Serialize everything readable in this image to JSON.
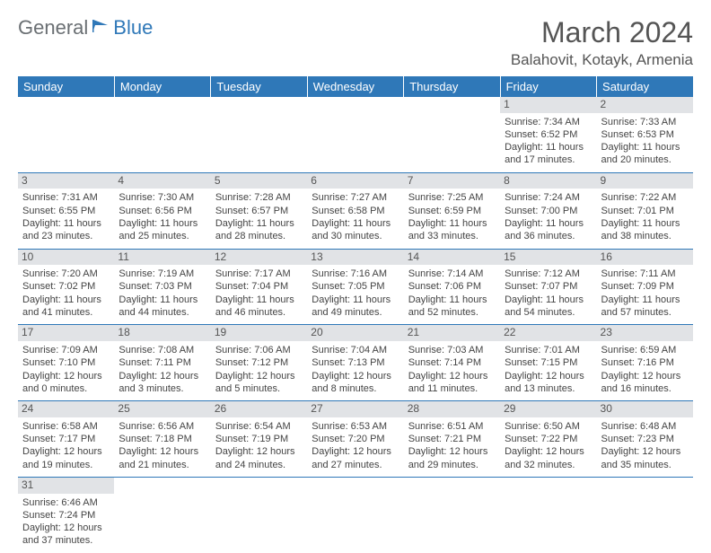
{
  "logo": {
    "text1": "General",
    "text2": "Blue"
  },
  "title": "March 2024",
  "subtitle": "Balahovit, Kotayk, Armenia",
  "colors": {
    "header_bg": "#2f78b8",
    "header_text": "#ffffff",
    "daynum_bg": "#e1e3e6",
    "text": "#444444",
    "border": "#2f78b8"
  },
  "columns": [
    "Sunday",
    "Monday",
    "Tuesday",
    "Wednesday",
    "Thursday",
    "Friday",
    "Saturday"
  ],
  "weeks": [
    [
      null,
      null,
      null,
      null,
      null,
      {
        "n": "1",
        "sr": "Sunrise: 7:34 AM",
        "ss": "Sunset: 6:52 PM",
        "dl": "Daylight: 11 hours and 17 minutes."
      },
      {
        "n": "2",
        "sr": "Sunrise: 7:33 AM",
        "ss": "Sunset: 6:53 PM",
        "dl": "Daylight: 11 hours and 20 minutes."
      }
    ],
    [
      {
        "n": "3",
        "sr": "Sunrise: 7:31 AM",
        "ss": "Sunset: 6:55 PM",
        "dl": "Daylight: 11 hours and 23 minutes."
      },
      {
        "n": "4",
        "sr": "Sunrise: 7:30 AM",
        "ss": "Sunset: 6:56 PM",
        "dl": "Daylight: 11 hours and 25 minutes."
      },
      {
        "n": "5",
        "sr": "Sunrise: 7:28 AM",
        "ss": "Sunset: 6:57 PM",
        "dl": "Daylight: 11 hours and 28 minutes."
      },
      {
        "n": "6",
        "sr": "Sunrise: 7:27 AM",
        "ss": "Sunset: 6:58 PM",
        "dl": "Daylight: 11 hours and 30 minutes."
      },
      {
        "n": "7",
        "sr": "Sunrise: 7:25 AM",
        "ss": "Sunset: 6:59 PM",
        "dl": "Daylight: 11 hours and 33 minutes."
      },
      {
        "n": "8",
        "sr": "Sunrise: 7:24 AM",
        "ss": "Sunset: 7:00 PM",
        "dl": "Daylight: 11 hours and 36 minutes."
      },
      {
        "n": "9",
        "sr": "Sunrise: 7:22 AM",
        "ss": "Sunset: 7:01 PM",
        "dl": "Daylight: 11 hours and 38 minutes."
      }
    ],
    [
      {
        "n": "10",
        "sr": "Sunrise: 7:20 AM",
        "ss": "Sunset: 7:02 PM",
        "dl": "Daylight: 11 hours and 41 minutes."
      },
      {
        "n": "11",
        "sr": "Sunrise: 7:19 AM",
        "ss": "Sunset: 7:03 PM",
        "dl": "Daylight: 11 hours and 44 minutes."
      },
      {
        "n": "12",
        "sr": "Sunrise: 7:17 AM",
        "ss": "Sunset: 7:04 PM",
        "dl": "Daylight: 11 hours and 46 minutes."
      },
      {
        "n": "13",
        "sr": "Sunrise: 7:16 AM",
        "ss": "Sunset: 7:05 PM",
        "dl": "Daylight: 11 hours and 49 minutes."
      },
      {
        "n": "14",
        "sr": "Sunrise: 7:14 AM",
        "ss": "Sunset: 7:06 PM",
        "dl": "Daylight: 11 hours and 52 minutes."
      },
      {
        "n": "15",
        "sr": "Sunrise: 7:12 AM",
        "ss": "Sunset: 7:07 PM",
        "dl": "Daylight: 11 hours and 54 minutes."
      },
      {
        "n": "16",
        "sr": "Sunrise: 7:11 AM",
        "ss": "Sunset: 7:09 PM",
        "dl": "Daylight: 11 hours and 57 minutes."
      }
    ],
    [
      {
        "n": "17",
        "sr": "Sunrise: 7:09 AM",
        "ss": "Sunset: 7:10 PM",
        "dl": "Daylight: 12 hours and 0 minutes."
      },
      {
        "n": "18",
        "sr": "Sunrise: 7:08 AM",
        "ss": "Sunset: 7:11 PM",
        "dl": "Daylight: 12 hours and 3 minutes."
      },
      {
        "n": "19",
        "sr": "Sunrise: 7:06 AM",
        "ss": "Sunset: 7:12 PM",
        "dl": "Daylight: 12 hours and 5 minutes."
      },
      {
        "n": "20",
        "sr": "Sunrise: 7:04 AM",
        "ss": "Sunset: 7:13 PM",
        "dl": "Daylight: 12 hours and 8 minutes."
      },
      {
        "n": "21",
        "sr": "Sunrise: 7:03 AM",
        "ss": "Sunset: 7:14 PM",
        "dl": "Daylight: 12 hours and 11 minutes."
      },
      {
        "n": "22",
        "sr": "Sunrise: 7:01 AM",
        "ss": "Sunset: 7:15 PM",
        "dl": "Daylight: 12 hours and 13 minutes."
      },
      {
        "n": "23",
        "sr": "Sunrise: 6:59 AM",
        "ss": "Sunset: 7:16 PM",
        "dl": "Daylight: 12 hours and 16 minutes."
      }
    ],
    [
      {
        "n": "24",
        "sr": "Sunrise: 6:58 AM",
        "ss": "Sunset: 7:17 PM",
        "dl": "Daylight: 12 hours and 19 minutes."
      },
      {
        "n": "25",
        "sr": "Sunrise: 6:56 AM",
        "ss": "Sunset: 7:18 PM",
        "dl": "Daylight: 12 hours and 21 minutes."
      },
      {
        "n": "26",
        "sr": "Sunrise: 6:54 AM",
        "ss": "Sunset: 7:19 PM",
        "dl": "Daylight: 12 hours and 24 minutes."
      },
      {
        "n": "27",
        "sr": "Sunrise: 6:53 AM",
        "ss": "Sunset: 7:20 PM",
        "dl": "Daylight: 12 hours and 27 minutes."
      },
      {
        "n": "28",
        "sr": "Sunrise: 6:51 AM",
        "ss": "Sunset: 7:21 PM",
        "dl": "Daylight: 12 hours and 29 minutes."
      },
      {
        "n": "29",
        "sr": "Sunrise: 6:50 AM",
        "ss": "Sunset: 7:22 PM",
        "dl": "Daylight: 12 hours and 32 minutes."
      },
      {
        "n": "30",
        "sr": "Sunrise: 6:48 AM",
        "ss": "Sunset: 7:23 PM",
        "dl": "Daylight: 12 hours and 35 minutes."
      }
    ],
    [
      {
        "n": "31",
        "sr": "Sunrise: 6:46 AM",
        "ss": "Sunset: 7:24 PM",
        "dl": "Daylight: 12 hours and 37 minutes."
      },
      null,
      null,
      null,
      null,
      null,
      null
    ]
  ]
}
